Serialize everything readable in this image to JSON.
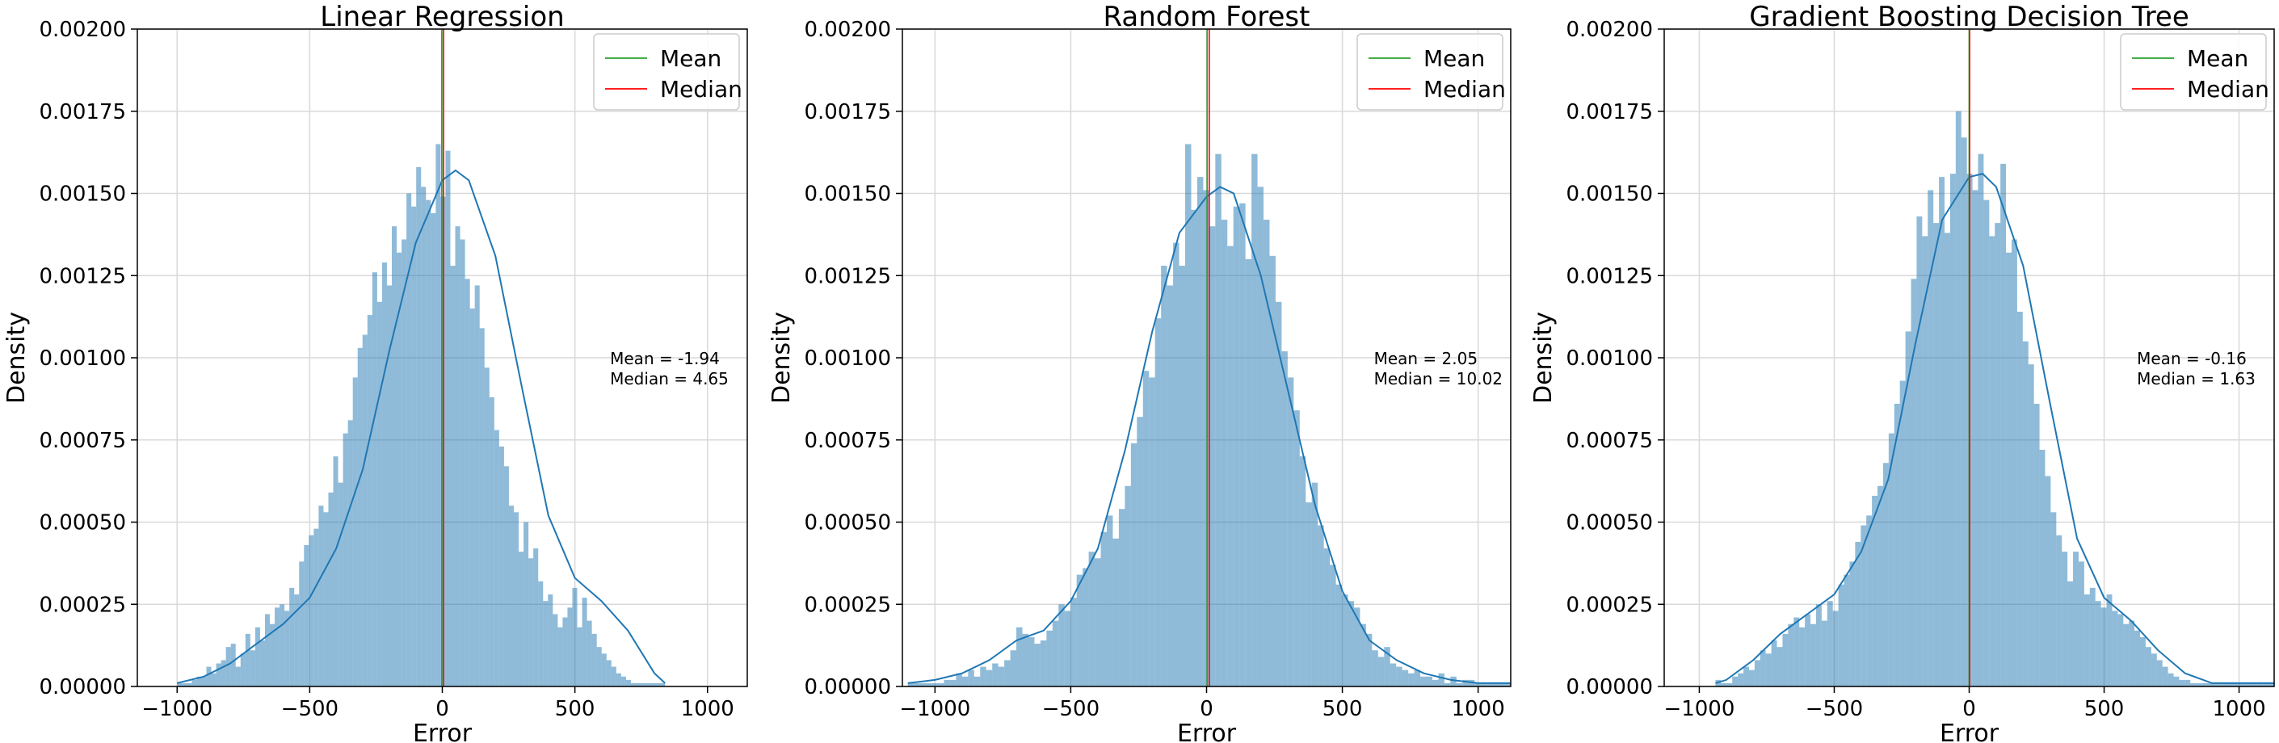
{
  "chart_data": [
    {
      "type": "histogram",
      "title": "Linear Regression",
      "xlabel": "Error",
      "ylabel": "Density",
      "xlim": [
        -1150,
        1150
      ],
      "ylim": [
        0,
        0.002
      ],
      "xticks": [
        -1000,
        -500,
        0,
        500,
        1000
      ],
      "xtick_labels": [
        "−1000",
        "−500",
        "0",
        "500",
        "1000"
      ],
      "yticks": [
        0,
        0.00025,
        0.0005,
        0.00075,
        0.001,
        0.00125,
        0.0015,
        0.00175,
        0.002
      ],
      "ytick_labels": [
        "0.00000",
        "0.00025",
        "0.00050",
        "0.00075",
        "0.00100",
        "0.00125",
        "0.00150",
        "0.00175",
        "0.00200"
      ],
      "grid": true,
      "legend": {
        "placement": "top-right",
        "entries": [
          {
            "label": "Mean",
            "color": "#2ca02c"
          },
          {
            "label": "Median",
            "color": "#ff0000"
          }
        ]
      },
      "mean": -1.94,
      "median": 4.65,
      "annotation": [
        "Mean = -1.94",
        "Median = 4.65"
      ],
      "bin_range": [
        -1000,
        840
      ],
      "bin_width": 18.4,
      "density": [
        1e-05,
        1e-05,
        1e-05,
        2e-05,
        3e-05,
        3e-05,
        6e-05,
        4e-05,
        7e-05,
        8e-05,
        0.00012,
        0.00013,
        6e-05,
        0.0001,
        0.00016,
        0.00011,
        0.00018,
        0.00014,
        0.00022,
        0.00019,
        0.00024,
        0.00025,
        0.00023,
        0.0003,
        0.00028,
        0.00038,
        0.00043,
        0.00046,
        0.00048,
        0.00055,
        0.00053,
        0.00059,
        0.0007,
        0.00062,
        0.00077,
        0.00081,
        0.00094,
        0.00103,
        0.00107,
        0.00113,
        0.00126,
        0.00117,
        0.00129,
        0.00122,
        0.0014,
        0.00132,
        0.00136,
        0.0015,
        0.00146,
        0.00158,
        0.00152,
        0.00148,
        0.00144,
        0.00165,
        0.00149,
        0.00163,
        0.00128,
        0.0014,
        0.00136,
        0.00124,
        0.00115,
        0.00122,
        0.00109,
        0.00097,
        0.00088,
        0.00078,
        0.00073,
        0.00067,
        0.00055,
        0.00053,
        0.00041,
        0.0005,
        0.00039,
        0.00042,
        0.00032,
        0.00026,
        0.00028,
        0.00022,
        0.00018,
        0.00021,
        0.00024,
        0.0003,
        0.00018,
        0.00027,
        0.0002,
        0.00016,
        0.00012,
        0.0001,
        8e-05,
        6e-05,
        4e-05,
        3e-05,
        2e-05,
        1e-05,
        1e-05,
        1e-05,
        1e-05,
        1e-05,
        1e-05,
        1e-05
      ],
      "kde": {
        "x": [
          -1000,
          -900,
          -800,
          -700,
          -600,
          -500,
          -400,
          -300,
          -200,
          -100,
          0,
          50,
          100,
          200,
          300,
          400,
          500,
          600,
          700,
          800,
          840
        ],
        "y": [
          1e-05,
          3e-05,
          7e-05,
          0.00013,
          0.00019,
          0.00027,
          0.00042,
          0.00066,
          0.00102,
          0.00135,
          0.00154,
          0.00157,
          0.00154,
          0.00131,
          0.00091,
          0.00052,
          0.00033,
          0.00026,
          0.00017,
          4e-05,
          1e-05
        ]
      }
    },
    {
      "type": "histogram",
      "title": "Random Forest",
      "xlabel": "Error",
      "ylabel": "Density",
      "xlim": [
        -1120,
        1120
      ],
      "ylim": [
        0,
        0.002
      ],
      "xticks": [
        -1000,
        -500,
        0,
        500,
        1000
      ],
      "xtick_labels": [
        "−1000",
        "−500",
        "0",
        "500",
        "1000"
      ],
      "yticks": [
        0,
        0.00025,
        0.0005,
        0.00075,
        0.001,
        0.00125,
        0.0015,
        0.00175,
        0.002
      ],
      "ytick_labels": [
        "0.00000",
        "0.00025",
        "0.00050",
        "0.00075",
        "0.00100",
        "0.00125",
        "0.00150",
        "0.00175",
        "0.00200"
      ],
      "grid": true,
      "legend": {
        "placement": "top-right",
        "entries": [
          {
            "label": "Mean",
            "color": "#2ca02c"
          },
          {
            "label": "Median",
            "color": "#ff0000"
          }
        ]
      },
      "mean": 2.05,
      "median": 10.02,
      "annotation": [
        "Mean = 2.05",
        "Median = 10.02"
      ],
      "bin_range": [
        -1100,
        1120
      ],
      "bin_width": 22.2,
      "density": [
        1e-05,
        1e-05,
        1e-05,
        1e-05,
        1e-05,
        1e-05,
        2e-05,
        2e-05,
        4e-05,
        3e-05,
        5e-05,
        3e-05,
        6e-05,
        5e-05,
        7e-05,
        6e-05,
        8e-05,
        0.00011,
        0.00018,
        0.00016,
        0.00015,
        0.00013,
        0.00014,
        0.00017,
        0.0002,
        0.00025,
        0.00023,
        0.00027,
        0.00034,
        0.00036,
        0.00041,
        0.00039,
        0.00047,
        0.00052,
        0.00045,
        0.00054,
        0.00061,
        0.00074,
        0.00082,
        0.00096,
        0.00094,
        0.00112,
        0.00128,
        0.00122,
        0.00135,
        0.00128,
        0.00165,
        0.00145,
        0.00155,
        0.00151,
        0.0014,
        0.00162,
        0.00142,
        0.00134,
        0.00146,
        0.00147,
        0.0013,
        0.00162,
        0.00152,
        0.00142,
        0.00131,
        0.00117,
        0.00102,
        0.00094,
        0.00084,
        0.0007,
        0.00056,
        0.00062,
        0.00049,
        0.00042,
        0.00037,
        0.00031,
        0.00028,
        0.00026,
        0.00024,
        0.00019,
        0.00016,
        0.00011,
        9e-05,
        0.00012,
        7e-05,
        6e-05,
        5e-05,
        4e-05,
        5e-05,
        3e-05,
        3e-05,
        2e-05,
        4e-05,
        1e-05,
        3e-05,
        1e-05,
        2e-05,
        2e-05,
        1e-05,
        1e-05,
        1e-05,
        1e-05,
        1e-05,
        1e-05
      ],
      "kde": {
        "x": [
          -1100,
          -1000,
          -900,
          -800,
          -700,
          -600,
          -500,
          -400,
          -300,
          -200,
          -100,
          0,
          50,
          100,
          200,
          300,
          400,
          500,
          600,
          700,
          800,
          900,
          1000,
          1120
        ],
        "y": [
          1e-05,
          2e-05,
          4e-05,
          8e-05,
          0.00014,
          0.00017,
          0.00026,
          0.00042,
          0.00072,
          0.00108,
          0.00138,
          0.00149,
          0.00152,
          0.0015,
          0.00125,
          0.0009,
          0.00055,
          0.00029,
          0.00014,
          8e-05,
          4e-05,
          2e-05,
          1e-05,
          1e-05
        ]
      }
    },
    {
      "type": "histogram",
      "title": "Gradient Boosting Decision Tree",
      "xlabel": "Error",
      "ylabel": "Density",
      "xlim": [
        -1130,
        1130
      ],
      "ylim": [
        0,
        0.002
      ],
      "xticks": [
        -1000,
        -500,
        0,
        500,
        1000
      ],
      "xtick_labels": [
        "−1000",
        "−500",
        "0",
        "500",
        "1000"
      ],
      "yticks": [
        0,
        0.00025,
        0.0005,
        0.00075,
        0.001,
        0.00125,
        0.0015,
        0.00175,
        0.002
      ],
      "ytick_labels": [
        "0.00000",
        "0.00025",
        "0.00050",
        "0.00075",
        "0.00100",
        "0.00125",
        "0.00150",
        "0.00175",
        "0.00200"
      ],
      "grid": true,
      "legend": {
        "placement": "top-right",
        "entries": [
          {
            "label": "Mean",
            "color": "#2ca02c"
          },
          {
            "label": "Median",
            "color": "#ff0000"
          }
        ]
      },
      "mean": -0.16,
      "median": 1.63,
      "annotation": [
        "Mean = -0.16",
        "Median = 1.63"
      ],
      "bin_range": [
        -940,
        1130
      ],
      "bin_width": 20.7,
      "density": [
        2e-05,
        1e-05,
        1e-05,
        3e-05,
        4e-05,
        6e-05,
        5e-05,
        8e-05,
        0.00011,
        0.0001,
        0.00014,
        0.00012,
        0.00016,
        0.00019,
        0.00021,
        0.00018,
        0.00022,
        0.00019,
        0.00025,
        0.0002,
        0.00026,
        0.00023,
        0.00031,
        0.00034,
        0.00038,
        0.00044,
        0.00049,
        0.00052,
        0.00058,
        0.00061,
        0.00068,
        0.00077,
        0.00086,
        0.00093,
        0.00108,
        0.00124,
        0.00143,
        0.00137,
        0.00151,
        0.00141,
        0.00155,
        0.00138,
        0.00156,
        0.00175,
        0.00167,
        0.00156,
        0.00151,
        0.00162,
        0.00148,
        0.00137,
        0.00141,
        0.00159,
        0.00132,
        0.00136,
        0.00114,
        0.00105,
        0.00098,
        0.00086,
        0.00072,
        0.00064,
        0.00053,
        0.00046,
        0.00041,
        0.00032,
        0.00041,
        0.00038,
        0.00028,
        0.0003,
        0.00026,
        0.00024,
        0.00028,
        0.00023,
        0.00022,
        0.00019,
        0.0002,
        0.00017,
        0.00015,
        0.00012,
        0.0001,
        8e-05,
        6e-05,
        4e-05,
        3e-05,
        2e-05,
        2e-05,
        1e-05,
        1e-05,
        1e-05,
        1e-05,
        1e-05,
        1e-05,
        1e-05,
        1e-05,
        1e-05,
        1e-05,
        1e-05,
        1e-05,
        1e-05,
        1e-05,
        1e-05
      ],
      "kde": {
        "x": [
          -940,
          -900,
          -800,
          -700,
          -600,
          -500,
          -400,
          -300,
          -200,
          -100,
          0,
          50,
          100,
          200,
          300,
          400,
          500,
          600,
          700,
          800,
          900,
          1000,
          1130
        ],
        "y": [
          1e-05,
          2e-05,
          8e-05,
          0.00016,
          0.00022,
          0.00028,
          0.00041,
          0.00063,
          0.00104,
          0.00142,
          0.00155,
          0.00156,
          0.00152,
          0.00128,
          0.00086,
          0.00045,
          0.00027,
          0.0002,
          0.00011,
          4e-05,
          1e-05,
          1e-05,
          1e-05
        ]
      }
    }
  ]
}
